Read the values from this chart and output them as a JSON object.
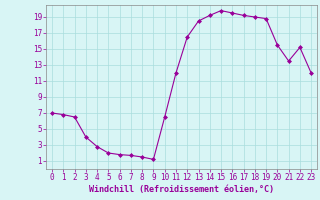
{
  "x": [
    0,
    1,
    2,
    3,
    4,
    5,
    6,
    7,
    8,
    9,
    10,
    11,
    12,
    13,
    14,
    15,
    16,
    17,
    18,
    19,
    20,
    21,
    22,
    23
  ],
  "y": [
    7,
    6.8,
    6.5,
    4.0,
    2.8,
    2.0,
    1.8,
    1.7,
    1.5,
    1.2,
    6.5,
    12.0,
    16.5,
    18.5,
    19.2,
    19.8,
    19.5,
    19.2,
    19.0,
    18.8,
    15.5,
    13.5,
    15.2,
    12.0
  ],
  "line_color": "#990099",
  "marker": "D",
  "marker_size": 2.0,
  "bg_color": "#d8f5f5",
  "grid_color": "#aadddd",
  "xlabel": "Windchill (Refroidissement éolien,°C)",
  "xlabel_color": "#990099",
  "tick_color": "#990099",
  "yticks": [
    1,
    3,
    5,
    7,
    9,
    11,
    13,
    15,
    17,
    19
  ],
  "xticks": [
    0,
    1,
    2,
    3,
    4,
    5,
    6,
    7,
    8,
    9,
    10,
    11,
    12,
    13,
    14,
    15,
    16,
    17,
    18,
    19,
    20,
    21,
    22,
    23
  ],
  "ylim": [
    0.0,
    20.5
  ],
  "xlim": [
    -0.5,
    23.5
  ],
  "tick_fontsize": 5.5,
  "xlabel_fontsize": 6.0,
  "linewidth": 0.8
}
